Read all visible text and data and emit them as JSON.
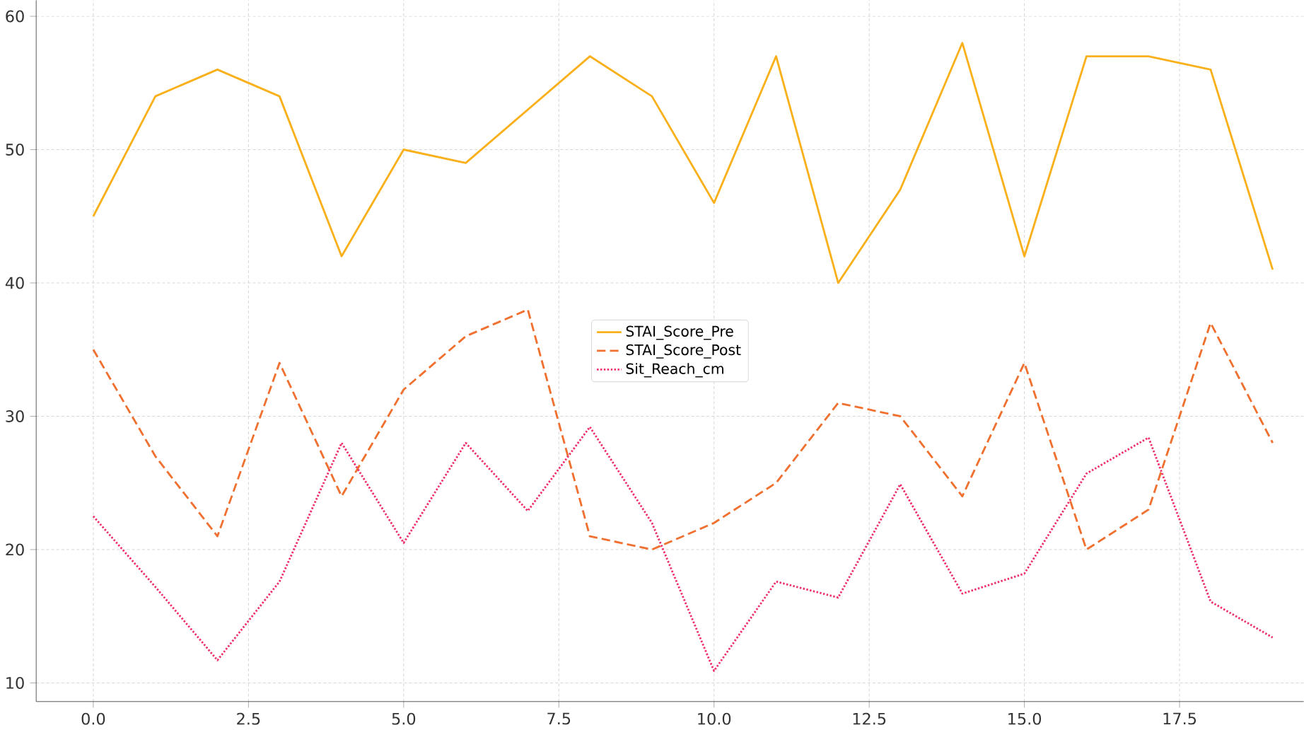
{
  "chart_data": {
    "type": "line",
    "x": [
      0,
      1,
      2,
      3,
      4,
      5,
      6,
      7,
      8,
      9,
      10,
      11,
      12,
      13,
      14,
      15,
      16,
      17,
      18,
      19
    ],
    "xlim": [
      -0.92,
      19.5
    ],
    "ylim": [
      8.6,
      61.2
    ],
    "xticks": [
      {
        "value": 0,
        "label": "0.0"
      },
      {
        "value": 2.5,
        "label": "2.5"
      },
      {
        "value": 5,
        "label": "5.0"
      },
      {
        "value": 7.5,
        "label": "7.5"
      },
      {
        "value": 10,
        "label": "10.0"
      },
      {
        "value": 12.5,
        "label": "12.5"
      },
      {
        "value": 15,
        "label": "15.0"
      },
      {
        "value": 17.5,
        "label": "17.5"
      }
    ],
    "yticks": [
      10,
      20,
      30,
      40,
      50,
      60
    ],
    "grid": true,
    "legend": "center",
    "marker": "none",
    "series": [
      {
        "name": "STAI_Score_Pre",
        "color": "#f9b01b",
        "line_style": "solid",
        "values": [
          45,
          54,
          56,
          54,
          42,
          50,
          49,
          53,
          57,
          54,
          46,
          57,
          40,
          47,
          58,
          42,
          57,
          57,
          56,
          41
        ]
      },
      {
        "name": "STAI_Score_Post",
        "color": "#f07030",
        "line_style": "dashed",
        "values": [
          35,
          27,
          21,
          34,
          24,
          32,
          36,
          38,
          21,
          20,
          22,
          25,
          31,
          30,
          24,
          34,
          20,
          23,
          37,
          28
        ]
      },
      {
        "name": "Sit_Reach_cm",
        "color": "#f0306a",
        "line_style": "dotted",
        "values": [
          22.5,
          17.2,
          11.7,
          17.6,
          28,
          20.5,
          28,
          22.9,
          29.2,
          22,
          10.9,
          17.6,
          16.4,
          24.9,
          16.7,
          18.2,
          25.7,
          28.4,
          16.1,
          13.4
        ]
      }
    ]
  }
}
